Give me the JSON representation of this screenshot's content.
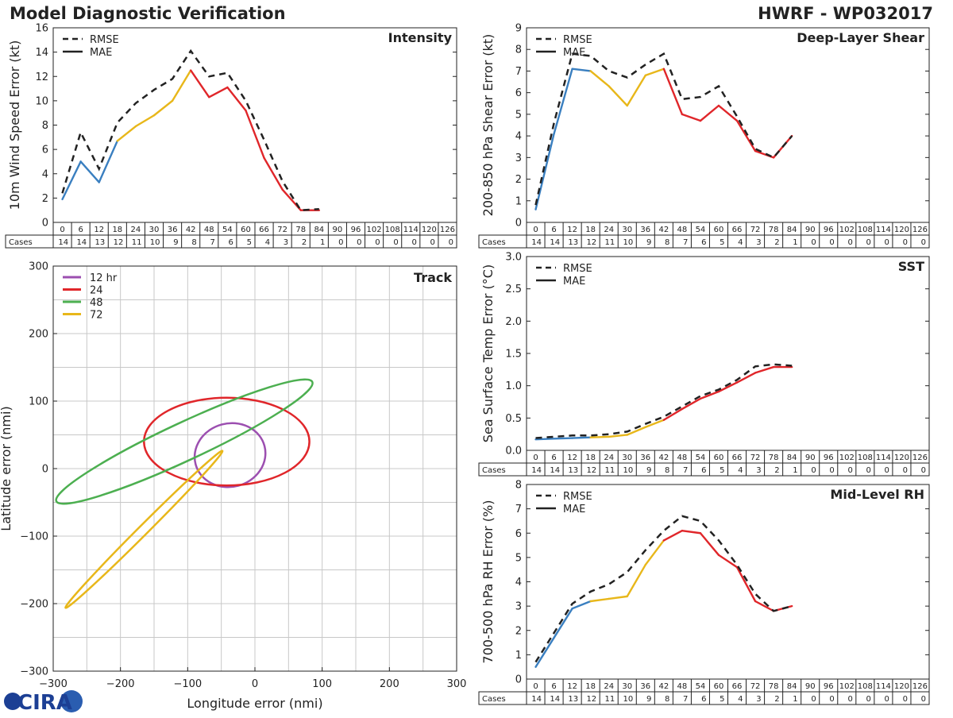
{
  "header": {
    "left_title": "Model Diagnostic Verification",
    "right_title": "HWRF - WP032017"
  },
  "logo": {
    "text": "CIRA"
  },
  "table": {
    "hours": [
      "0",
      "6",
      "12",
      "18",
      "24",
      "30",
      "36",
      "42",
      "48",
      "54",
      "60",
      "66",
      "72",
      "78",
      "84",
      "90",
      "96",
      "102",
      "108",
      "114",
      "120",
      "126"
    ],
    "cases": [
      "14",
      "14",
      "13",
      "12",
      "11",
      "10",
      "9",
      "8",
      "7",
      "6",
      "5",
      "4",
      "3",
      "2",
      "1",
      "0",
      "0",
      "0",
      "0",
      "0",
      "0",
      "0"
    ],
    "cases_label": "Cases"
  },
  "colors": {
    "blue": "#3a7fc0",
    "yellow": "#e8b71a",
    "red": "#e0262a",
    "green": "#4caf50",
    "purple": "#9c4fb0",
    "black": "#222222",
    "grid": "#c8c8c8"
  },
  "chart_data": [
    {
      "id": "intensity",
      "type": "line",
      "title": "Intensity",
      "ylabel": "10m Wind Speed Error (kt)",
      "ylim": [
        0,
        16
      ],
      "yticks": [
        "0",
        "2",
        "4",
        "6",
        "8",
        "10",
        "12",
        "14",
        "16"
      ],
      "legend": [
        "RMSE",
        "MAE"
      ],
      "legend_position": "top-left",
      "x": [
        0,
        6,
        12,
        18,
        24,
        30,
        36,
        42,
        48,
        54,
        60,
        66,
        72,
        78,
        84
      ],
      "rmse": [
        2.4,
        7.4,
        4.4,
        8.2,
        9.8,
        10.9,
        11.8,
        14.1,
        12.0,
        12.3,
        10.0,
        6.8,
        3.4,
        1.0,
        1.1
      ],
      "mae": [
        1.9,
        5.0,
        3.3,
        6.7,
        7.9,
        8.8,
        10.0,
        12.5,
        10.3,
        11.1,
        9.2,
        5.3,
        2.7,
        1.0,
        1.0
      ]
    },
    {
      "id": "shear",
      "type": "line",
      "title": "Deep-Layer Shear",
      "ylabel": "200-850 hPa Shear Error (kt)",
      "ylim": [
        0,
        9
      ],
      "yticks": [
        "0",
        "1",
        "2",
        "3",
        "4",
        "5",
        "6",
        "7",
        "8",
        "9"
      ],
      "legend": [
        "RMSE",
        "MAE"
      ],
      "legend_position": "top-left",
      "x": [
        0,
        6,
        12,
        18,
        24,
        30,
        36,
        42,
        48,
        54,
        60,
        66,
        72,
        78,
        84
      ],
      "rmse": [
        0.8,
        4.6,
        7.8,
        7.7,
        7.0,
        6.7,
        7.3,
        7.8,
        5.7,
        5.8,
        6.3,
        4.9,
        3.4,
        3.0,
        4.0
      ],
      "mae": [
        0.6,
        4.1,
        7.1,
        7.0,
        6.3,
        5.4,
        6.8,
        7.1,
        5.0,
        4.7,
        5.4,
        4.7,
        3.3,
        3.0,
        4.0
      ]
    },
    {
      "id": "sst",
      "type": "line",
      "title": "SST",
      "ylabel": "Sea Surface Temp Error (°C)",
      "ylim": [
        0,
        3
      ],
      "yticks": [
        "0.0",
        "0.5",
        "1.0",
        "1.5",
        "2.0",
        "2.5",
        "3.0"
      ],
      "legend": [
        "RMSE",
        "MAE"
      ],
      "legend_position": "top-left",
      "x": [
        0,
        6,
        12,
        18,
        24,
        30,
        36,
        42,
        48,
        54,
        60,
        66,
        72,
        78,
        84
      ],
      "rmse": [
        0.19,
        0.21,
        0.23,
        0.23,
        0.25,
        0.29,
        0.41,
        0.52,
        0.68,
        0.84,
        0.94,
        1.09,
        1.3,
        1.33,
        1.31
      ],
      "mae": [
        0.17,
        0.18,
        0.19,
        0.2,
        0.21,
        0.24,
        0.36,
        0.47,
        0.64,
        0.8,
        0.91,
        1.05,
        1.2,
        1.29,
        1.29
      ]
    },
    {
      "id": "rh",
      "type": "line",
      "title": "Mid-Level RH",
      "ylabel": "700-500 hPa RH Error (%)",
      "ylim": [
        0,
        8
      ],
      "yticks": [
        "0",
        "1",
        "2",
        "3",
        "4",
        "5",
        "6",
        "7",
        "8"
      ],
      "legend": [
        "RMSE",
        "MAE"
      ],
      "legend_position": "top-left",
      "x": [
        0,
        6,
        12,
        18,
        24,
        30,
        36,
        42,
        48,
        54,
        60,
        66,
        72,
        78,
        84
      ],
      "rmse": [
        0.7,
        1.9,
        3.1,
        3.6,
        3.9,
        4.4,
        5.3,
        6.1,
        6.7,
        6.5,
        5.7,
        4.7,
        3.5,
        2.8,
        3.0
      ],
      "mae": [
        0.5,
        1.7,
        2.9,
        3.2,
        3.3,
        3.4,
        4.7,
        5.7,
        6.1,
        6.0,
        5.1,
        4.6,
        3.2,
        2.8,
        3.0
      ]
    },
    {
      "id": "track",
      "type": "scatter",
      "title": "Track",
      "xlabel": "Longitude error (nmi)",
      "ylabel": "Latitude error (nmi)",
      "xlim": [
        -300,
        300
      ],
      "ylim": [
        -300,
        300
      ],
      "xticks": [
        "−300",
        "−200",
        "−100",
        "0",
        "100",
        "200",
        "300"
      ],
      "yticks": [
        "−300",
        "−200",
        "−100",
        "0",
        "100",
        "200",
        "300"
      ],
      "grid": true,
      "legend_position": "top-left",
      "ellipses": [
        {
          "label": "12 hr",
          "color": "#9c4fb0",
          "cx": -37,
          "cy": 20,
          "rx": 53,
          "ry": 47,
          "angle_deg": 15
        },
        {
          "label": "24",
          "color": "#e0262a",
          "cx": -42,
          "cy": 40,
          "rx": 123,
          "ry": 65,
          "angle_deg": 0
        },
        {
          "label": "48",
          "color": "#4caf50",
          "cx": -105,
          "cy": 40,
          "rx": 210,
          "ry": 28,
          "angle_deg": 25
        },
        {
          "label": "72",
          "color": "#e8b71a",
          "cx": -165,
          "cy": -90,
          "rx": 165,
          "ry": 7,
          "angle_deg": 45
        }
      ]
    }
  ]
}
